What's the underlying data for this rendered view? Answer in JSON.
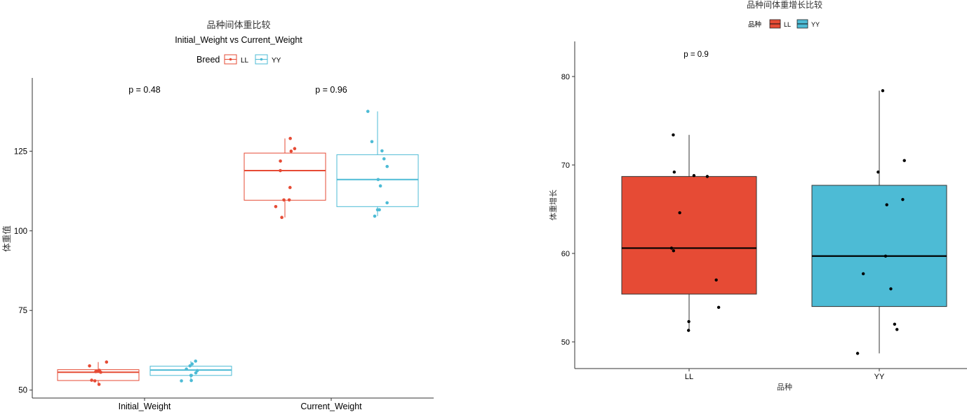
{
  "left": {
    "title": "品种间体重比较",
    "subtitle": "Initial_Weight vs Current_Weight",
    "ylabel": "体重值",
    "legend_title": "Breed",
    "legend_items": [
      "LL",
      "YY"
    ],
    "pvalues": [
      "p = 0.48",
      "p = 0.96"
    ]
  },
  "right": {
    "title": "品种间体重增长比较",
    "xlabel": "品种",
    "ylabel": "体重增长",
    "legend_title": "品种",
    "legend_items": [
      "LL",
      "YY"
    ],
    "pvalue": "p = 0.9"
  },
  "colors": {
    "LL": "#E64B35",
    "YY": "#4DBBD5"
  },
  "chart_data": [
    {
      "type": "box",
      "title": "品种间体重比较",
      "subtitle": "Initial_Weight vs Current_Weight",
      "ylabel": "体重值",
      "categories": [
        "Initial_Weight",
        "Current_Weight"
      ],
      "ylim": [
        47.5,
        148
      ],
      "yticks": [
        50,
        75,
        100,
        125
      ],
      "legend": "top",
      "series": [
        {
          "name": "LL",
          "boxes": [
            {
              "min": 51.8,
              "q1": 53.0,
              "median": 55.6,
              "q3": 56.4,
              "max": 58.8,
              "points": [
                58.8,
                57.6,
                56.2,
                55.8,
                55.9,
                55.6,
                53.1,
                52.9,
                51.8
              ]
            },
            {
              "min": 104.2,
              "q1": 109.6,
              "median": 118.9,
              "q3": 124.4,
              "max": 129.0,
              "points": [
                129.0,
                125.8,
                125.0,
                121.9,
                118.9,
                113.6,
                109.7,
                109.7,
                107.6,
                104.2
              ]
            }
          ]
        },
        {
          "name": "YY",
          "boxes": [
            {
              "min": 52.9,
              "q1": 54.6,
              "median": 56.3,
              "q3": 57.5,
              "max": 59.1,
              "points": [
                59.1,
                58.2,
                57.6,
                56.6,
                56.1,
                55.4,
                54.6,
                54.6,
                53.0,
                52.9
              ]
            },
            {
              "min": 104.6,
              "q1": 107.6,
              "median": 116.1,
              "q3": 123.9,
              "max": 137.5,
              "points": [
                137.5,
                128.0,
                125.1,
                122.6,
                120.2,
                116.1,
                114.1,
                108.8,
                106.6,
                106.6,
                104.6
              ]
            }
          ]
        }
      ],
      "annotations": [
        {
          "category": "Initial_Weight",
          "text": "p = 0.48"
        },
        {
          "category": "Current_Weight",
          "text": "p = 0.96"
        }
      ]
    },
    {
      "type": "box",
      "title": "品种间体重增长比较",
      "xlabel": "品种",
      "ylabel": "体重增长",
      "categories": [
        "LL",
        "YY"
      ],
      "ylim": [
        47,
        84
      ],
      "yticks": [
        50,
        60,
        70,
        80
      ],
      "legend": "top",
      "boxes": [
        {
          "category": "LL",
          "min": 51.3,
          "q1": 55.4,
          "median": 60.6,
          "q3": 68.7,
          "max": 73.4,
          "points": [
            73.4,
            69.2,
            68.8,
            68.7,
            64.6,
            60.6,
            60.3,
            57.0,
            53.9,
            52.3,
            51.3
          ]
        },
        {
          "category": "YY",
          "min": 48.7,
          "q1": 54.0,
          "median": 59.7,
          "q3": 67.7,
          "max": 78.4,
          "points": [
            78.4,
            70.5,
            69.2,
            66.1,
            65.5,
            59.7,
            57.7,
            56.0,
            52.0,
            51.4,
            48.7
          ]
        }
      ],
      "annotations": [
        {
          "category": "LL",
          "text": "p = 0.9"
        }
      ]
    }
  ]
}
